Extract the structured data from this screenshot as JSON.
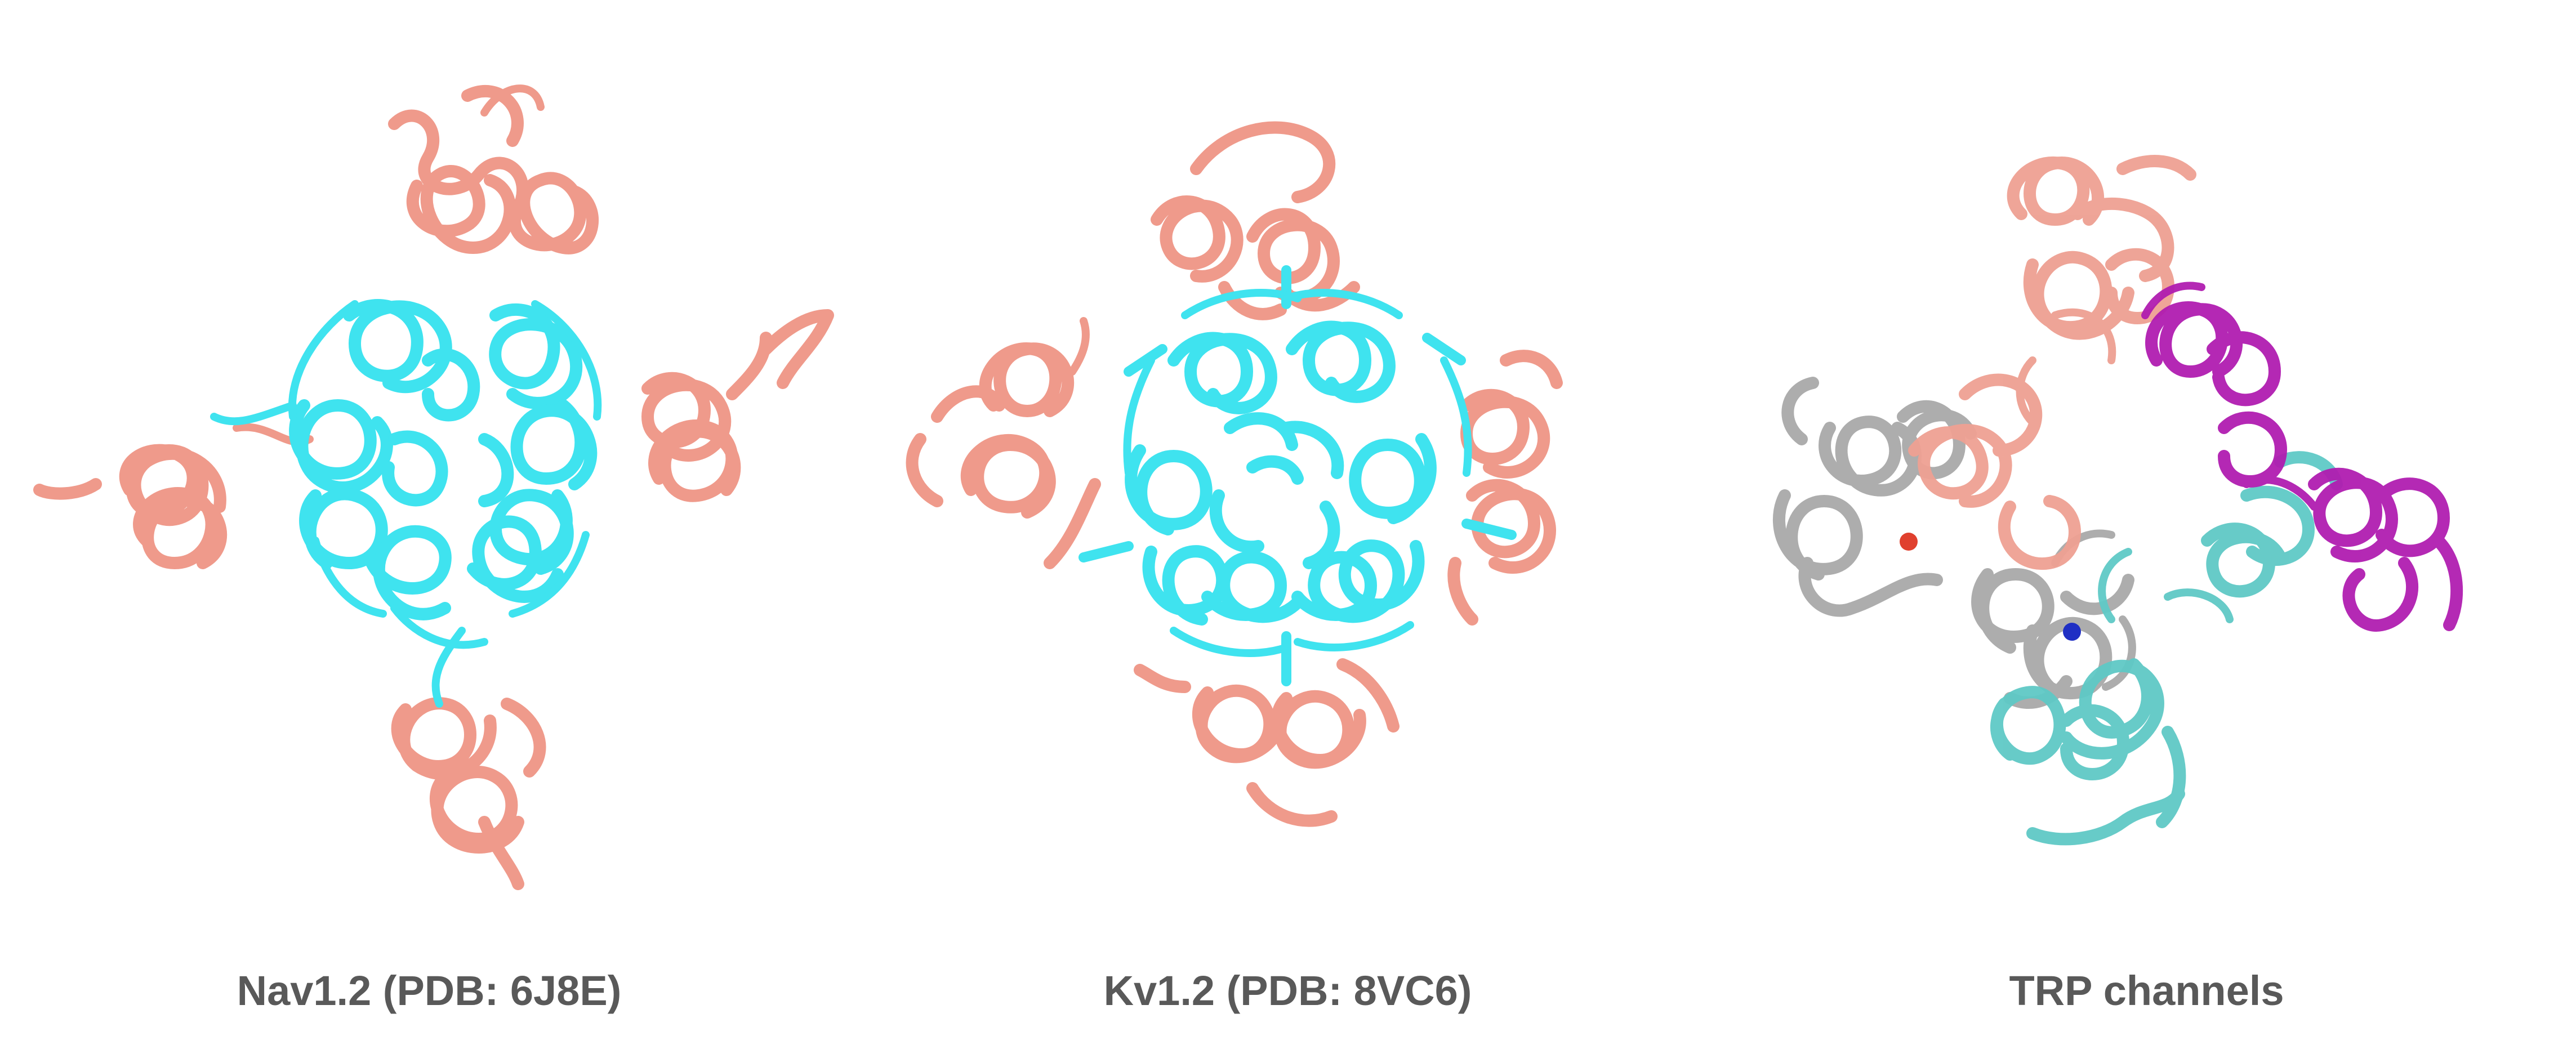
{
  "figure": {
    "panels": [
      {
        "caption": "Nav1.2 (PDB: 6J8E)",
        "subject": "ribbon rendering of sodium channel Nav1.2, top view: cyan central pore domain surrounded by four salmon voltage-sensing domains",
        "colors": {
          "pore": "#3fe3ef",
          "vsd": "#ef9a8b"
        }
      },
      {
        "caption": "Kv1.2 (PDB: 8VC6)",
        "subject": "ribbon rendering of potassium channel Kv1.2, top view: cyan square pore domain with four salmon voltage-sensing domains",
        "colors": {
          "pore": "#3fe3ef",
          "vsd": "#ef9a8b"
        }
      },
      {
        "caption": "TRP channels",
        "subject": "ribbon rendering of a TRP channel tetramer, top view: subunits colored salmon, magenta, teal and grey, with one red and one blue sphere",
        "colors": {
          "subunit_a": "#eea092",
          "subunit_b": "#b01db0",
          "subunit_c": "#5fc9c6",
          "subunit_d": "#a9a9a9",
          "sphere_red": "#e0402e",
          "sphere_blue": "#1f2fc4"
        }
      }
    ]
  }
}
